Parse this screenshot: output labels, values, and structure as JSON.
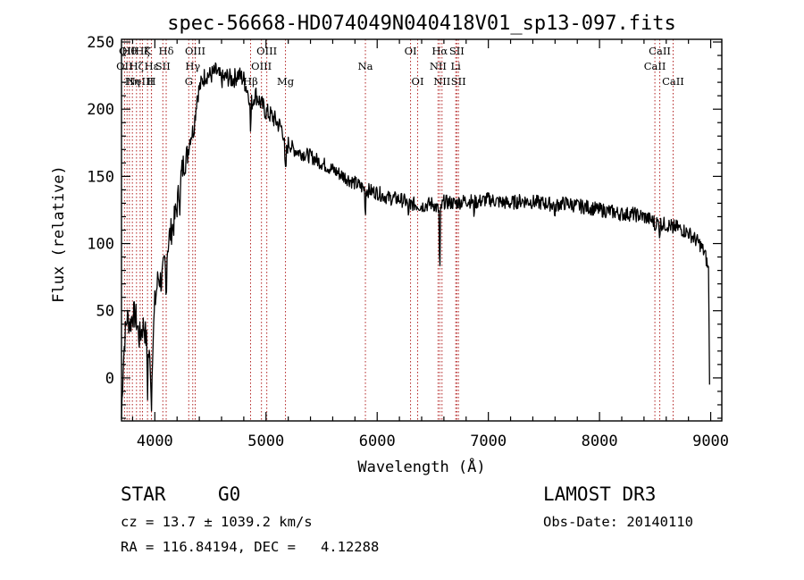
{
  "chart_data": {
    "type": "line",
    "title": "spec-56668-HD074049N040418V01_sp13-097.fits",
    "xlabel": "Wavelength (Å)",
    "ylabel": "Flux (relative)",
    "xlim": [
      3700,
      9100
    ],
    "ylim": [
      -32,
      252
    ],
    "xticks": [
      4000,
      5000,
      6000,
      7000,
      8000,
      9000
    ],
    "yticks": [
      0,
      50,
      100,
      150,
      200,
      250
    ],
    "grid": false,
    "line_color": "#000000",
    "marker_color": "#b22222",
    "anchors": [
      [
        3700,
        -30
      ],
      [
        3715,
        10
      ],
      [
        3730,
        30
      ],
      [
        3750,
        45
      ],
      [
        3780,
        40
      ],
      [
        3800,
        48
      ],
      [
        3830,
        45
      ],
      [
        3860,
        30
      ],
      [
        3900,
        40
      ],
      [
        3940,
        20
      ],
      [
        3970,
        5
      ],
      [
        4000,
        55
      ],
      [
        4030,
        75
      ],
      [
        4060,
        72
      ],
      [
        4100,
        90
      ],
      [
        4130,
        105
      ],
      [
        4170,
        115
      ],
      [
        4200,
        128
      ],
      [
        4230,
        148
      ],
      [
        4260,
        160
      ],
      [
        4290,
        165
      ],
      [
        4320,
        180
      ],
      [
        4350,
        185
      ],
      [
        4380,
        210
      ],
      [
        4400,
        215
      ],
      [
        4430,
        222
      ],
      [
        4460,
        226
      ],
      [
        4500,
        225
      ],
      [
        4550,
        228
      ],
      [
        4600,
        222
      ],
      [
        4650,
        224
      ],
      [
        4700,
        222
      ],
      [
        4750,
        226
      ],
      [
        4800,
        222
      ],
      [
        4850,
        210
      ],
      [
        4880,
        205
      ],
      [
        4900,
        212
      ],
      [
        4950,
        205
      ],
      [
        5000,
        198
      ],
      [
        5050,
        195
      ],
      [
        5100,
        190
      ],
      [
        5150,
        185
      ],
      [
        5180,
        168
      ],
      [
        5200,
        175
      ],
      [
        5250,
        170
      ],
      [
        5300,
        168
      ],
      [
        5400,
        165
      ],
      [
        5500,
        160
      ],
      [
        5600,
        155
      ],
      [
        5700,
        150
      ],
      [
        5800,
        145
      ],
      [
        5900,
        140
      ],
      [
        6000,
        138
      ],
      [
        6100,
        134
      ],
      [
        6200,
        133
      ],
      [
        6300,
        130
      ],
      [
        6400,
        128
      ],
      [
        6500,
        130
      ],
      [
        6560,
        124
      ],
      [
        6600,
        131
      ],
      [
        6700,
        130
      ],
      [
        6800,
        132
      ],
      [
        6900,
        131
      ],
      [
        7000,
        133
      ],
      [
        7100,
        131
      ],
      [
        7200,
        130
      ],
      [
        7300,
        132
      ],
      [
        7400,
        131
      ],
      [
        7500,
        130
      ],
      [
        7600,
        129
      ],
      [
        7700,
        130
      ],
      [
        7800,
        128
      ],
      [
        7900,
        127
      ],
      [
        8000,
        125
      ],
      [
        8100,
        124
      ],
      [
        8200,
        122
      ],
      [
        8300,
        122
      ],
      [
        8400,
        120
      ],
      [
        8500,
        116
      ],
      [
        8600,
        114
      ],
      [
        8700,
        112
      ],
      [
        8800,
        108
      ],
      [
        8900,
        100
      ],
      [
        8950,
        92
      ],
      [
        8980,
        80
      ]
    ],
    "dips": [
      [
        3934,
        3,
        -35
      ],
      [
        3969,
        3,
        -30
      ],
      [
        4101,
        4,
        -30
      ],
      [
        4227,
        3,
        -20
      ],
      [
        4861,
        4,
        -25
      ],
      [
        5174,
        5,
        -20
      ],
      [
        5893,
        2,
        -30
      ],
      [
        6280,
        4,
        -10
      ],
      [
        6300,
        2,
        -8
      ],
      [
        6563,
        3,
        -55
      ],
      [
        6870,
        4,
        -8
      ],
      [
        7600,
        4,
        -10
      ],
      [
        8498,
        2,
        -10
      ],
      [
        8542,
        2,
        -14
      ],
      [
        8662,
        2,
        -12
      ]
    ],
    "noise": {
      "amp": 6,
      "step": 5,
      "seed": 7
    },
    "lines": [
      {
        "wl": 3727,
        "row": 2,
        "label": "OII"
      },
      {
        "wl": 3750,
        "row": 1,
        "label": "OII"
      },
      {
        "wl": 3771,
        "row": 1,
        "label": "Hθ"
      },
      {
        "wl": 3798,
        "row": 3,
        "label": "Hη"
      },
      {
        "wl": 3835,
        "row": 2,
        "label": "Hζ"
      },
      {
        "wl": 3868,
        "row": 3,
        "label": "NeIII"
      },
      {
        "wl": 3889,
        "row": 1,
        "label": "Hζ"
      },
      {
        "wl": 3934,
        "row": 1,
        "label": "K"
      },
      {
        "wl": 3969,
        "row": 3,
        "label": "H"
      },
      {
        "wl": 3970,
        "row": 2,
        "label": "Hε"
      },
      {
        "wl": 4072,
        "row": 2,
        "label": "SII"
      },
      {
        "wl": 4102,
        "row": 1,
        "label": "Hδ"
      },
      {
        "wl": 4305,
        "row": 3,
        "label": "G"
      },
      {
        "wl": 4341,
        "row": 2,
        "label": "Hγ"
      },
      {
        "wl": 4363,
        "row": 1,
        "label": "OIII"
      },
      {
        "wl": 4861,
        "row": 3,
        "label": "Hβ"
      },
      {
        "wl": 4959,
        "row": 2,
        "label": "OIII"
      },
      {
        "wl": 5007,
        "row": 1,
        "label": "OIII"
      },
      {
        "wl": 5175,
        "row": 3,
        "label": "Mg"
      },
      {
        "wl": 5894,
        "row": 2,
        "label": "Na"
      },
      {
        "wl": 6300,
        "row": 1,
        "label": "OI"
      },
      {
        "wl": 6364,
        "row": 3,
        "label": "OI"
      },
      {
        "wl": 6548,
        "row": 2,
        "label": "NII"
      },
      {
        "wl": 6563,
        "row": 1,
        "label": "Hα"
      },
      {
        "wl": 6583,
        "row": 3,
        "label": "NII"
      },
      {
        "wl": 6707,
        "row": 2,
        "label": "Li"
      },
      {
        "wl": 6716,
        "row": 1,
        "label": "SII"
      },
      {
        "wl": 6731,
        "row": 3,
        "label": "SII"
      },
      {
        "wl": 8498,
        "row": 2,
        "label": "CaII"
      },
      {
        "wl": 8542,
        "row": 1,
        "label": "CaII"
      },
      {
        "wl": 8662,
        "row": 3,
        "label": "CaII"
      }
    ]
  },
  "info": {
    "class": "STAR",
    "subclass": "G0",
    "survey": "LAMOST DR3",
    "cz": "cz = 13.7 ± 1039.2 km/s",
    "obs_date": "Obs-Date: 20140110",
    "radec": "RA = 116.84194, DEC =   4.12288"
  }
}
